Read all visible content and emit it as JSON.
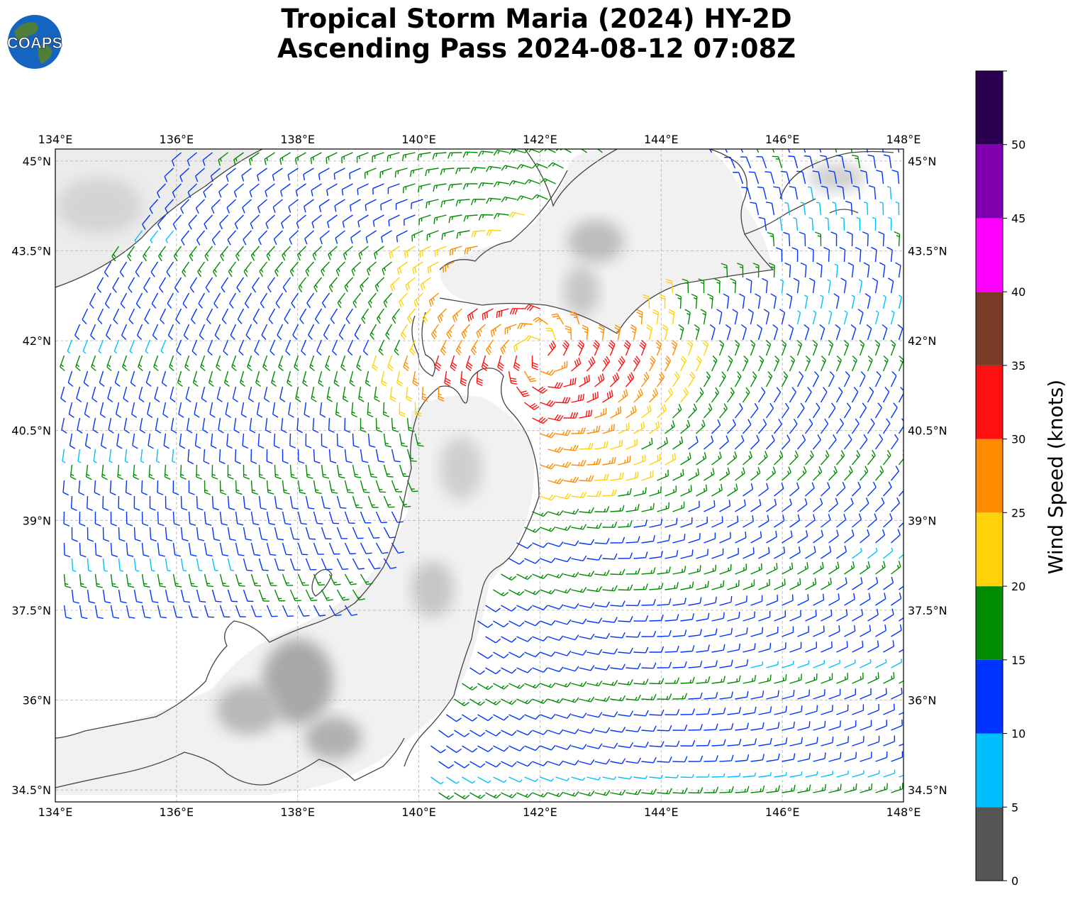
{
  "title": {
    "line1": "Tropical Storm Maria (2024) HY-2D",
    "line2": "Ascending Pass 2024-08-12 07:08Z"
  },
  "logo": {
    "text": "COAPS",
    "icon": "globe-icon",
    "colors": {
      "ocean": "#1565c0",
      "land": "#4f7d3a",
      "text": "#ffffff"
    }
  },
  "map": {
    "lon_range": [
      134,
      148
    ],
    "lat_range": [
      34.3,
      45.2
    ],
    "x_ticks": [
      "134°E",
      "136°E",
      "138°E",
      "140°E",
      "142°E",
      "144°E",
      "146°E",
      "148°E"
    ],
    "y_ticks": [
      "34.5°N",
      "36°N",
      "37.5°N",
      "39°N",
      "40.5°N",
      "42°N",
      "43.5°N",
      "45°N"
    ],
    "gridlines": true,
    "background": "terrain-shaded grayscale"
  },
  "colorbar": {
    "label": "Wind Speed (knots)",
    "ticks": [
      "0",
      "5",
      "10",
      "15",
      "20",
      "25",
      "30",
      "35",
      "40",
      "45",
      "50"
    ],
    "bins": [
      {
        "range": [
          0,
          5
        ],
        "color": "#555555"
      },
      {
        "range": [
          5,
          10
        ],
        "color": "#00bfff"
      },
      {
        "range": [
          10,
          15
        ],
        "color": "#0033ff"
      },
      {
        "range": [
          15,
          20
        ],
        "color": "#008c00"
      },
      {
        "range": [
          20,
          25
        ],
        "color": "#ffd20a"
      },
      {
        "range": [
          25,
          30
        ],
        "color": "#ff8c00"
      },
      {
        "range": [
          30,
          35
        ],
        "color": "#ff0f0f"
      },
      {
        "range": [
          35,
          40
        ],
        "color": "#7a3a28"
      },
      {
        "range": [
          40,
          45
        ],
        "color": "#ff00ff"
      },
      {
        "range": [
          45,
          50
        ],
        "color": "#8000b0"
      },
      {
        "range": [
          50,
          55
        ],
        "color": "#2a0050"
      }
    ]
  },
  "storm_center": {
    "lon": 142.0,
    "lat": 41.8
  }
}
